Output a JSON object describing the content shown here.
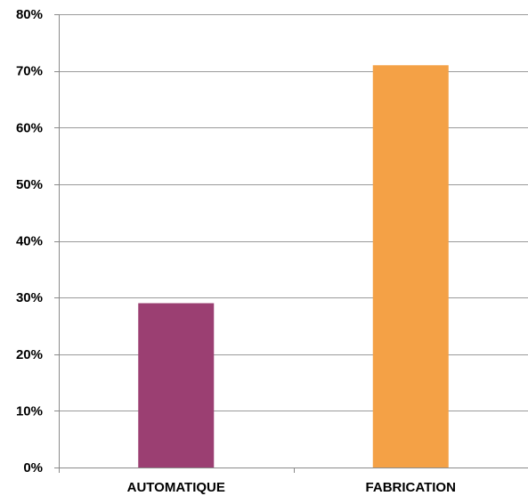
{
  "chart_data": {
    "type": "bar",
    "title": "",
    "xlabel": "",
    "ylabel": "",
    "categories": [
      "AUTOMATIQUE",
      "FABRICATION"
    ],
    "values": [
      29,
      71
    ],
    "colors": [
      "#9b3f72",
      "#f4a146"
    ],
    "ylim": [
      0,
      80
    ],
    "yticks": [
      0,
      10,
      20,
      30,
      40,
      50,
      60,
      70,
      80
    ],
    "ytick_labels": [
      "0%",
      "10%",
      "20%",
      "30%",
      "40%",
      "50%",
      "60%",
      "70%",
      "80%"
    ],
    "grid": true,
    "legend": "none"
  }
}
